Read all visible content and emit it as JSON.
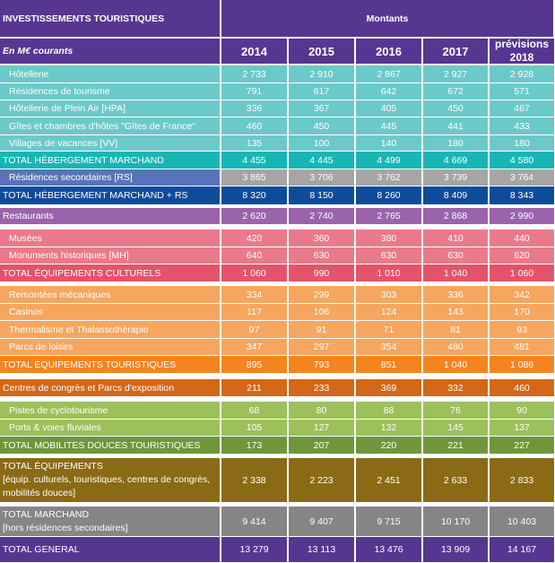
{
  "header": {
    "title": "INVESTISSEMENTS TOURISTIQUES",
    "subtitle": "En M€ courants",
    "montants": "Montants",
    "years": [
      "2014",
      "2015",
      "2016",
      "2017",
      "prévisions 2018"
    ],
    "header_color": "#573691"
  },
  "rows": [
    {
      "label": "Hôtellerie",
      "values": [
        "2 733",
        "2 910",
        "2 867",
        "2 927",
        "2 928"
      ],
      "color": "#6cc9c9",
      "indent": true
    },
    {
      "label": "Résidences de tourisme",
      "values": [
        "791",
        "617",
        "642",
        "672",
        "571"
      ],
      "color": "#6cc9c9",
      "indent": true
    },
    {
      "label": "Hôtellerie de Plein Air [HPA]",
      "values": [
        "336",
        "367",
        "405",
        "450",
        "467"
      ],
      "color": "#6cc9c9",
      "indent": true
    },
    {
      "label": "Gîtes et chambres d'hôtes \"Gîtes de France\"",
      "values": [
        "460",
        "450",
        "445",
        "441",
        "433"
      ],
      "color": "#6cc9c9",
      "indent": true
    },
    {
      "label": "Villages de vacances [VV]",
      "values": [
        "135",
        "100",
        "140",
        "180",
        "180"
      ],
      "color": "#6cc9c9",
      "indent": true
    },
    {
      "label": "TOTAL HÉBERGEMENT MARCHAND",
      "values": [
        "4 455",
        "4 445",
        "4 499",
        "4 669",
        "4 580"
      ],
      "color": "#19b5b5"
    },
    {
      "label": "Résidences secondaires [RS]",
      "values": [
        "3 865",
        "3 706",
        "3 762",
        "3 739",
        "3 764"
      ],
      "color": "#5a72b8",
      "value_color": "#a5a5a5",
      "indent": true
    },
    {
      "label": "TOTAL HÉBERGEMENT MARCHAND + RS",
      "values": [
        "8 320",
        "8 150",
        "8 260",
        "8 409",
        "8 343"
      ],
      "color": "#0e4c99"
    },
    {
      "label": "Restaurants",
      "values": [
        "2 620",
        "2 740",
        "2 765",
        "2 868",
        "2 990"
      ],
      "color": "#9b63ab"
    },
    {
      "label": "Musées",
      "values": [
        "420",
        "360",
        "380",
        "410",
        "440"
      ],
      "color": "#ea7a8b",
      "indent": true
    },
    {
      "label": "Monuments historiques [MH]",
      "values": [
        "640",
        "630",
        "630",
        "630",
        "620"
      ],
      "color": "#ea7a8b",
      "indent": true
    },
    {
      "label": "TOTAL ÉQUIPEMENTS CULTURELS",
      "values": [
        "1 060",
        "990",
        "1 010",
        "1 040",
        "1 060"
      ],
      "color": "#e3546b"
    },
    {
      "label": "Remontées mécaniques",
      "values": [
        "334",
        "299",
        "303",
        "336",
        "342"
      ],
      "color": "#f6a65e",
      "indent": true
    },
    {
      "label": "Casinos",
      "values": [
        "117",
        "106",
        "124",
        "143",
        "170"
      ],
      "color": "#f6a65e",
      "indent": true
    },
    {
      "label": "Thermalisme  et Thalassothérapie",
      "values": [
        "97",
        "91",
        "71",
        "81",
        "93"
      ],
      "color": "#f6a65e",
      "indent": true
    },
    {
      "label": "Parcs de loisirs",
      "values": [
        "347",
        "297",
        "354",
        "480",
        "481"
      ],
      "color": "#f6a65e",
      "indent": true
    },
    {
      "label": "TOTAL ÉQUIPEMENTS TOURISTIQUES",
      "values": [
        "895",
        "793",
        "851",
        "1 040",
        "1 086"
      ],
      "color": "#f2851f"
    },
    {
      "label": "Centres de congrès et Parcs d'exposition",
      "values": [
        "211",
        "233",
        "369",
        "332",
        "460"
      ],
      "color": "#d26818"
    },
    {
      "label": "Pistes de cyclotourisme",
      "values": [
        "68",
        "80",
        "88",
        "76",
        "90"
      ],
      "color": "#9cc05b",
      "indent": true
    },
    {
      "label": "Ports & voies fluviales",
      "values": [
        "105",
        "127",
        "132",
        "145",
        "137"
      ],
      "color": "#9cc05b",
      "indent": true
    },
    {
      "label": "TOTAL MOBILITES DOUCES TOURISTIQUES",
      "values": [
        "173",
        "207",
        "220",
        "221",
        "227"
      ],
      "color": "#6f973a"
    },
    {
      "label": "TOTAL ÉQUIPEMENTS",
      "sublabel": "[équip. culturels, touristiques, centres de congrès, mobilités douces]",
      "values": [
        "2 338",
        "2 223",
        "2 451",
        "2 633",
        "2 833"
      ],
      "color": "#8a6a14"
    },
    {
      "label": "TOTAL MARCHAND",
      "sublabel": "[hors résidences secondaires]",
      "values": [
        "9 414",
        "9 407",
        "9 715",
        "10 170",
        "10 403"
      ],
      "color": "#858585"
    },
    {
      "label": "TOTAL GENERAL",
      "values": [
        "13 279",
        "13 113",
        "13 476",
        "13 909",
        "14 167"
      ],
      "color": "#573691"
    }
  ]
}
